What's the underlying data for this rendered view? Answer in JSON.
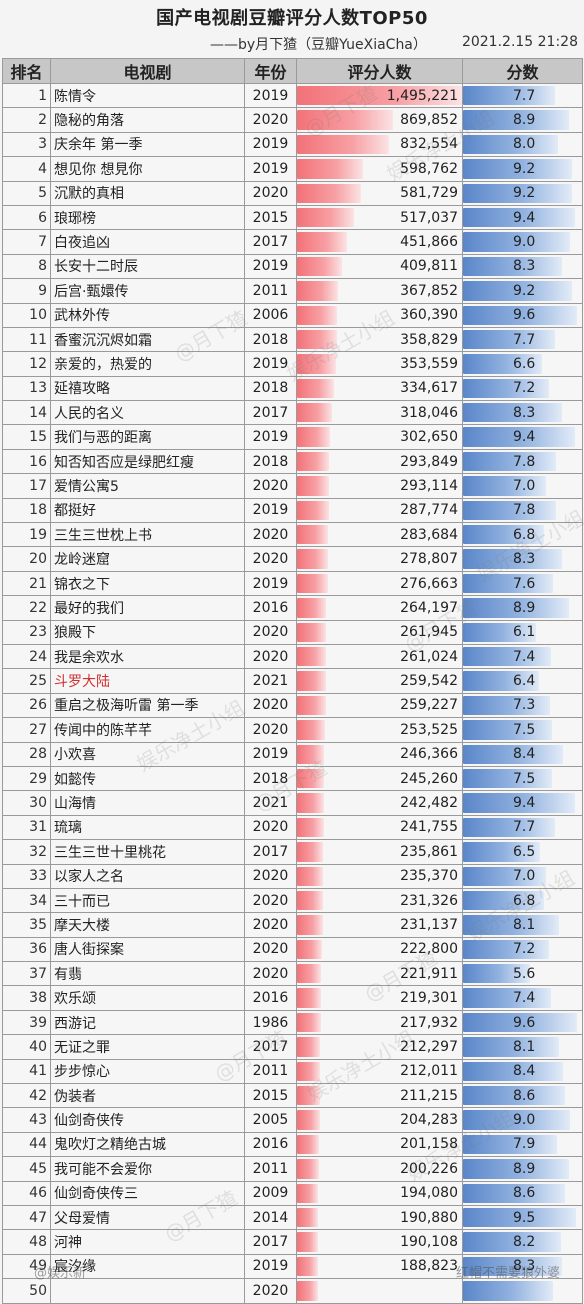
{
  "title": "国产电视剧豆瓣评分人数TOP50",
  "subtitle_left": "——by月下猹（豆瓣YueXiaCha）",
  "subtitle_right": "2021.2.15 21:28",
  "headers": {
    "rank": "排名",
    "name": "电视剧",
    "year": "年份",
    "count": "评分人数",
    "score": "分数"
  },
  "colors": {
    "count_bar": "#f27278",
    "score_bar": "#5a86c9",
    "highlight": "#d03030"
  },
  "highlight_rank": 25,
  "chart_data": {
    "type": "table",
    "title": "国产电视剧豆瓣评分人数TOP50",
    "columns": [
      "排名",
      "电视剧",
      "年份",
      "评分人数",
      "分数"
    ],
    "count_max": 1495221,
    "score_max": 10,
    "rows": [
      {
        "rank": "1",
        "name": "陈情令",
        "year": "2019",
        "count_text": "1,495,221",
        "count": 1495221,
        "score_text": "7.7",
        "score": 7.7
      },
      {
        "rank": "2",
        "name": "隐秘的角落",
        "year": "2020",
        "count_text": "869,852",
        "count": 869852,
        "score_text": "8.9",
        "score": 8.9
      },
      {
        "rank": "3",
        "name": "庆余年 第一季",
        "year": "2019",
        "count_text": "832,554",
        "count": 832554,
        "score_text": "8.0",
        "score": 8.0
      },
      {
        "rank": "4",
        "name": "想见你 想見你",
        "year": "2019",
        "count_text": "598,762",
        "count": 598762,
        "score_text": "9.2",
        "score": 9.2
      },
      {
        "rank": "5",
        "name": "沉默的真相",
        "year": "2020",
        "count_text": "581,729",
        "count": 581729,
        "score_text": "9.2",
        "score": 9.2
      },
      {
        "rank": "6",
        "name": "琅琊榜",
        "year": "2015",
        "count_text": "517,037",
        "count": 517037,
        "score_text": "9.4",
        "score": 9.4
      },
      {
        "rank": "7",
        "name": "白夜追凶",
        "year": "2017",
        "count_text": "451,866",
        "count": 451866,
        "score_text": "9.0",
        "score": 9.0
      },
      {
        "rank": "8",
        "name": "长安十二时辰",
        "year": "2019",
        "count_text": "409,811",
        "count": 409811,
        "score_text": "8.3",
        "score": 8.3
      },
      {
        "rank": "9",
        "name": "后宫·甄嬛传",
        "year": "2011",
        "count_text": "367,852",
        "count": 367852,
        "score_text": "9.2",
        "score": 9.2
      },
      {
        "rank": "10",
        "name": "武林外传",
        "year": "2006",
        "count_text": "360,390",
        "count": 360390,
        "score_text": "9.6",
        "score": 9.6
      },
      {
        "rank": "11",
        "name": "香蜜沉沉烬如霜",
        "year": "2018",
        "count_text": "358,829",
        "count": 358829,
        "score_text": "7.7",
        "score": 7.7
      },
      {
        "rank": "12",
        "name": "亲爱的，热爱的",
        "year": "2019",
        "count_text": "353,559",
        "count": 353559,
        "score_text": "6.6",
        "score": 6.6
      },
      {
        "rank": "13",
        "name": "延禧攻略",
        "year": "2018",
        "count_text": "334,617",
        "count": 334617,
        "score_text": "7.2",
        "score": 7.2
      },
      {
        "rank": "14",
        "name": "人民的名义",
        "year": "2017",
        "count_text": "318,046",
        "count": 318046,
        "score_text": "8.3",
        "score": 8.3
      },
      {
        "rank": "15",
        "name": "我们与恶的距离",
        "year": "2019",
        "count_text": "302,650",
        "count": 302650,
        "score_text": "9.4",
        "score": 9.4
      },
      {
        "rank": "16",
        "name": "知否知否应是绿肥红瘦",
        "year": "2018",
        "count_text": "293,849",
        "count": 293849,
        "score_text": "7.8",
        "score": 7.8
      },
      {
        "rank": "17",
        "name": "爱情公寓5",
        "year": "2020",
        "count_text": "293,114",
        "count": 293114,
        "score_text": "7.0",
        "score": 7.0
      },
      {
        "rank": "18",
        "name": "都挺好",
        "year": "2019",
        "count_text": "287,774",
        "count": 287774,
        "score_text": "7.8",
        "score": 7.8
      },
      {
        "rank": "19",
        "name": "三生三世枕上书",
        "year": "2020",
        "count_text": "283,684",
        "count": 283684,
        "score_text": "6.8",
        "score": 6.8
      },
      {
        "rank": "20",
        "name": "龙岭迷窟",
        "year": "2020",
        "count_text": "278,807",
        "count": 278807,
        "score_text": "8.3",
        "score": 8.3
      },
      {
        "rank": "21",
        "name": "锦衣之下",
        "year": "2019",
        "count_text": "276,663",
        "count": 276663,
        "score_text": "7.6",
        "score": 7.6
      },
      {
        "rank": "22",
        "name": "最好的我们",
        "year": "2016",
        "count_text": "264,197",
        "count": 264197,
        "score_text": "8.9",
        "score": 8.9
      },
      {
        "rank": "23",
        "name": "狼殿下",
        "year": "2020",
        "count_text": "261,945",
        "count": 261945,
        "score_text": "6.1",
        "score": 6.1
      },
      {
        "rank": "24",
        "name": "我是余欢水",
        "year": "2020",
        "count_text": "261,024",
        "count": 261024,
        "score_text": "7.4",
        "score": 7.4
      },
      {
        "rank": "25",
        "name": "斗罗大陆",
        "year": "2021",
        "count_text": "259,542",
        "count": 259542,
        "score_text": "6.4",
        "score": 6.4
      },
      {
        "rank": "26",
        "name": "重启之极海听雷 第一季",
        "year": "2020",
        "count_text": "259,227",
        "count": 259227,
        "score_text": "7.3",
        "score": 7.3
      },
      {
        "rank": "27",
        "name": "传闻中的陈芊芊",
        "year": "2020",
        "count_text": "253,525",
        "count": 253525,
        "score_text": "7.5",
        "score": 7.5
      },
      {
        "rank": "28",
        "name": "小欢喜",
        "year": "2019",
        "count_text": "246,366",
        "count": 246366,
        "score_text": "8.4",
        "score": 8.4
      },
      {
        "rank": "29",
        "name": "如懿传",
        "year": "2018",
        "count_text": "245,260",
        "count": 245260,
        "score_text": "7.5",
        "score": 7.5
      },
      {
        "rank": "30",
        "name": "山海情",
        "year": "2021",
        "count_text": "242,482",
        "count": 242482,
        "score_text": "9.4",
        "score": 9.4
      },
      {
        "rank": "31",
        "name": "琉璃",
        "year": "2020",
        "count_text": "241,755",
        "count": 241755,
        "score_text": "7.7",
        "score": 7.7
      },
      {
        "rank": "32",
        "name": "三生三世十里桃花",
        "year": "2017",
        "count_text": "235,861",
        "count": 235861,
        "score_text": "6.5",
        "score": 6.5
      },
      {
        "rank": "33",
        "name": "以家人之名",
        "year": "2020",
        "count_text": "235,370",
        "count": 235370,
        "score_text": "7.0",
        "score": 7.0
      },
      {
        "rank": "34",
        "name": "三十而已",
        "year": "2020",
        "count_text": "231,326",
        "count": 231326,
        "score_text": "6.8",
        "score": 6.8
      },
      {
        "rank": "35",
        "name": "摩天大楼",
        "year": "2020",
        "count_text": "231,137",
        "count": 231137,
        "score_text": "8.1",
        "score": 8.1
      },
      {
        "rank": "36",
        "name": "唐人街探案",
        "year": "2020",
        "count_text": "222,800",
        "count": 222800,
        "score_text": "7.2",
        "score": 7.2
      },
      {
        "rank": "37",
        "name": "有翡",
        "year": "2020",
        "count_text": "221,911",
        "count": 221911,
        "score_text": "5.6",
        "score": 5.6
      },
      {
        "rank": "38",
        "name": "欢乐颂",
        "year": "2016",
        "count_text": "219,301",
        "count": 219301,
        "score_text": "7.4",
        "score": 7.4
      },
      {
        "rank": "39",
        "name": "西游记",
        "year": "1986",
        "count_text": "217,932",
        "count": 217932,
        "score_text": "9.6",
        "score": 9.6
      },
      {
        "rank": "40",
        "name": "无证之罪",
        "year": "2017",
        "count_text": "212,297",
        "count": 212297,
        "score_text": "8.1",
        "score": 8.1
      },
      {
        "rank": "41",
        "name": "步步惊心",
        "year": "2011",
        "count_text": "212,011",
        "count": 212011,
        "score_text": "8.4",
        "score": 8.4
      },
      {
        "rank": "42",
        "name": "伪装者",
        "year": "2015",
        "count_text": "211,215",
        "count": 211215,
        "score_text": "8.6",
        "score": 8.6
      },
      {
        "rank": "43",
        "name": "仙剑奇侠传",
        "year": "2005",
        "count_text": "204,283",
        "count": 204283,
        "score_text": "9.0",
        "score": 9.0
      },
      {
        "rank": "44",
        "name": "鬼吹灯之精绝古城",
        "year": "2016",
        "count_text": "201,158",
        "count": 201158,
        "score_text": "7.9",
        "score": 7.9
      },
      {
        "rank": "45",
        "name": "我可能不会爱你",
        "year": "2011",
        "count_text": "200,226",
        "count": 200226,
        "score_text": "8.9",
        "score": 8.9
      },
      {
        "rank": "46",
        "name": "仙剑奇侠传三",
        "year": "2009",
        "count_text": "194,080",
        "count": 194080,
        "score_text": "8.6",
        "score": 8.6
      },
      {
        "rank": "47",
        "name": "父母爱情",
        "year": "2014",
        "count_text": "190,880",
        "count": 190880,
        "score_text": "9.5",
        "score": 9.5
      },
      {
        "rank": "48",
        "name": "河神",
        "year": "2017",
        "count_text": "190,108",
        "count": 190108,
        "score_text": "8.2",
        "score": 8.2
      },
      {
        "rank": "49",
        "name": "宸汐缘",
        "year": "2019",
        "count_text": "188,823",
        "count": 188823,
        "score_text": "8.3",
        "score": 8.3
      },
      {
        "rank": "50",
        "name": "",
        "year": "2020",
        "count_text": "",
        "count": 186500,
        "score_text": "",
        "score": 7.6
      }
    ]
  },
  "watermarks": [
    "@月下猹",
    "娱乐净土小组",
    "@月下猹",
    "娱乐净土小组",
    "@月下猹",
    "娱乐净土小组",
    "@月下猹",
    "娱乐净土小组"
  ],
  "footer_watermark_left": "@娱乐新",
  "footer_watermark_right": "红帽不需要狼外婆"
}
